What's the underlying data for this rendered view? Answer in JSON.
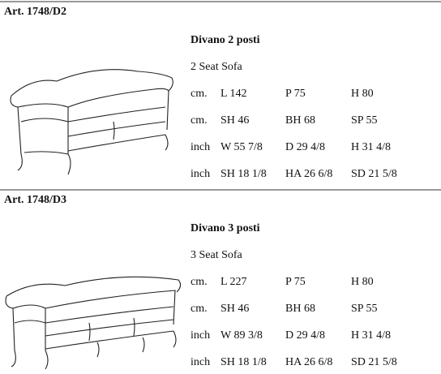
{
  "sections": [
    {
      "article": "Art. 1748/D2",
      "name": "Divano 2 posti",
      "subtitle": "2 Seat Sofa",
      "rows": [
        [
          "cm.",
          "L 142",
          "P 75",
          "H 80"
        ],
        [
          "cm.",
          "SH 46",
          "BH 68",
          "SP 55"
        ],
        [
          "inch",
          "W 55 7/8",
          "D 29 4/8",
          "H 31 4/8"
        ],
        [
          "inch",
          "SH 18 1/8",
          "HA 26 6/8",
          "SD 21 5/8"
        ]
      ]
    },
    {
      "article": "Art. 1748/D3",
      "name": "Divano 3 posti",
      "subtitle": "3 Seat Sofa",
      "rows": [
        [
          "cm.",
          "L 227",
          "P 75",
          "H 80"
        ],
        [
          "cm.",
          "SH 46",
          "BH 68",
          "SP 55"
        ],
        [
          "inch",
          "W 89 3/8",
          "D 29 4/8",
          "H 31 4/8"
        ],
        [
          "inch",
          "SH 18 1/8",
          "HA 26 6/8",
          "SD 21 5/8"
        ]
      ]
    }
  ]
}
